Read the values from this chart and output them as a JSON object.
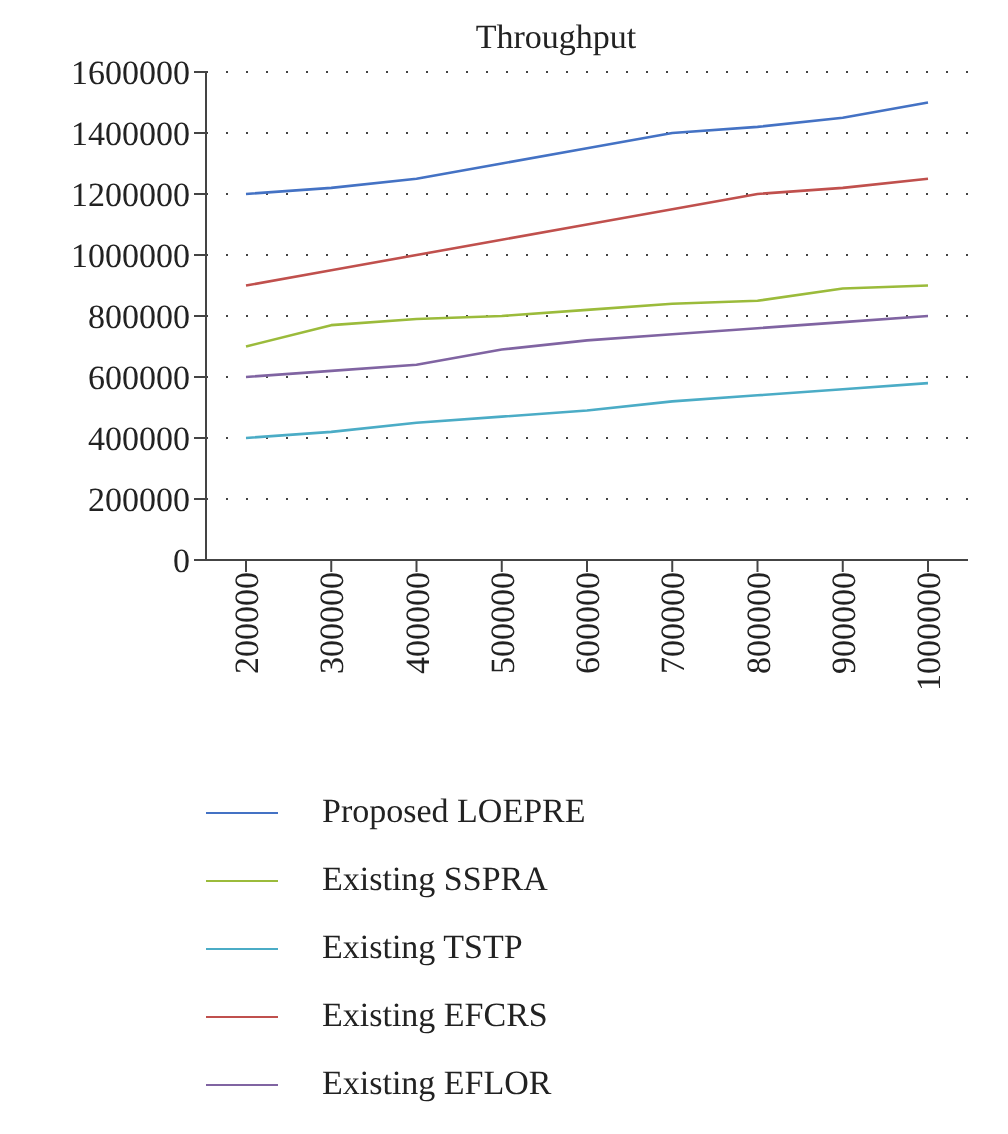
{
  "chart_data": {
    "type": "line",
    "title": "Throughput",
    "categories": [
      "200000",
      "300000",
      "400000",
      "500000",
      "600000",
      "700000",
      "800000",
      "900000",
      "1000000"
    ],
    "series": [
      {
        "name": "Proposed LOEPRE",
        "color": "#4472c4",
        "values": [
          1200000,
          1220000,
          1250000,
          1300000,
          1350000,
          1400000,
          1420000,
          1450000,
          1500000
        ]
      },
      {
        "name": "Existing SSPRA",
        "color": "#9bbb3b",
        "values": [
          700000,
          770000,
          790000,
          800000,
          820000,
          840000,
          850000,
          890000,
          900000
        ]
      },
      {
        "name": "Existing TSTP",
        "color": "#4bacc6",
        "values": [
          400000,
          420000,
          450000,
          470000,
          490000,
          520000,
          540000,
          560000,
          580000
        ]
      },
      {
        "name": "Existing EFCRS",
        "color": "#c0504d",
        "values": [
          900000,
          950000,
          1000000,
          1050000,
          1100000,
          1150000,
          1200000,
          1220000,
          1250000
        ]
      },
      {
        "name": "Existing EFLOR",
        "color": "#8064a2",
        "values": [
          600000,
          620000,
          640000,
          690000,
          720000,
          740000,
          760000,
          780000,
          800000
        ]
      }
    ],
    "ylim": [
      0,
      1600000
    ],
    "yticks": [
      0,
      200000,
      400000,
      600000,
      800000,
      1000000,
      1200000,
      1400000,
      1600000
    ],
    "grid": "y",
    "legend": "bottom",
    "marker": "none",
    "line_style": "solid"
  }
}
